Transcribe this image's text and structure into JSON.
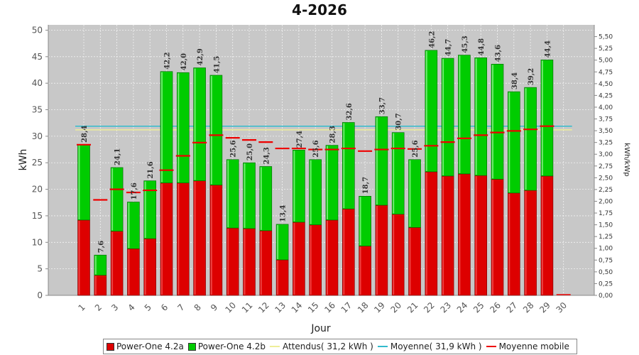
{
  "chart_data": {
    "type": "bar",
    "title": "4-2026",
    "xlabel": "Jour",
    "ylabel": "kWh",
    "y2label": "kWh/kWp",
    "ylim": [
      0,
      51
    ],
    "y2lim": [
      0,
      5.75
    ],
    "yticks": [
      "0",
      "5",
      "10",
      "15",
      "20",
      "25",
      "30",
      "35",
      "40",
      "45",
      "50"
    ],
    "y2ticks": [
      "0,00",
      "0,25",
      "0,50",
      "0,75",
      "1,00",
      "1,25",
      "1,50",
      "1,75",
      "2,00",
      "2,25",
      "2,50",
      "2,75",
      "3,00",
      "3,25",
      "3,50",
      "3,75",
      "4,00",
      "4,25",
      "4,50",
      "4,75",
      "5,00",
      "5,25",
      "5,50"
    ],
    "categories": [
      "1",
      "2",
      "3",
      "4",
      "5",
      "6",
      "7",
      "8",
      "9",
      "10",
      "11",
      "12",
      "13",
      "14",
      "15",
      "16",
      "17",
      "18",
      "19",
      "20",
      "21",
      "22",
      "23",
      "24",
      "25",
      "26",
      "27",
      "28",
      "29",
      "30"
    ],
    "series": [
      {
        "name": "Power-One 4.2a",
        "color": "#dd0000",
        "values": [
          14.2,
          3.8,
          12.1,
          8.8,
          10.7,
          21.2,
          21.2,
          21.6,
          20.8,
          12.7,
          12.6,
          12.2,
          6.7,
          13.8,
          13.3,
          14.2,
          16.3,
          9.3,
          17.0,
          15.3,
          12.8,
          23.3,
          22.5,
          22.9,
          22.6,
          21.9,
          19.3,
          19.8,
          22.5,
          0
        ]
      },
      {
        "name": "Power-One 4.2b",
        "color": "#00cc00",
        "values": [
          14.2,
          3.8,
          12.0,
          8.8,
          10.9,
          21.0,
          20.8,
          21.3,
          20.7,
          12.9,
          12.4,
          12.1,
          6.7,
          13.6,
          12.3,
          14.1,
          16.3,
          9.4,
          16.7,
          15.4,
          12.8,
          22.9,
          22.2,
          22.4,
          22.2,
          21.7,
          19.1,
          19.4,
          21.9,
          0
        ]
      }
    ],
    "totals_labels": [
      "28,4",
      "7,6",
      "24,1",
      "17,6",
      "21,6",
      "42,2",
      "42,0",
      "42,9",
      "41,5",
      "25,6",
      "25,0",
      "24,3",
      "13,4",
      "27,4",
      "25,6",
      "28,3",
      "32,6",
      "18,7",
      "33,7",
      "30,7",
      "25,6",
      "46,2",
      "44,7",
      "45,3",
      "44,8",
      "43,6",
      "38,4",
      "39,2",
      "44,4",
      ""
    ],
    "moving_average": [
      28.4,
      18.0,
      20.0,
      19.4,
      19.8,
      23.6,
      26.3,
      28.8,
      30.2,
      29.7,
      29.3,
      28.9,
      27.7,
      27.7,
      27.5,
      27.5,
      27.7,
      27.2,
      27.5,
      27.7,
      27.6,
      28.2,
      28.9,
      29.6,
      30.2,
      30.7,
      31.0,
      31.3,
      31.9
    ],
    "references": [
      {
        "name": "Attendus( 31,2 kWh )",
        "value": 31.2,
        "color": "#eeee99"
      },
      {
        "name": "Moyenne( 31,9 kWh )",
        "value": 31.9,
        "color": "#33bbcc"
      }
    ],
    "moving_average_name": "Moyenne mobile",
    "moving_average_color": "#ee0000",
    "grid": true,
    "legend_position": "bottom"
  }
}
